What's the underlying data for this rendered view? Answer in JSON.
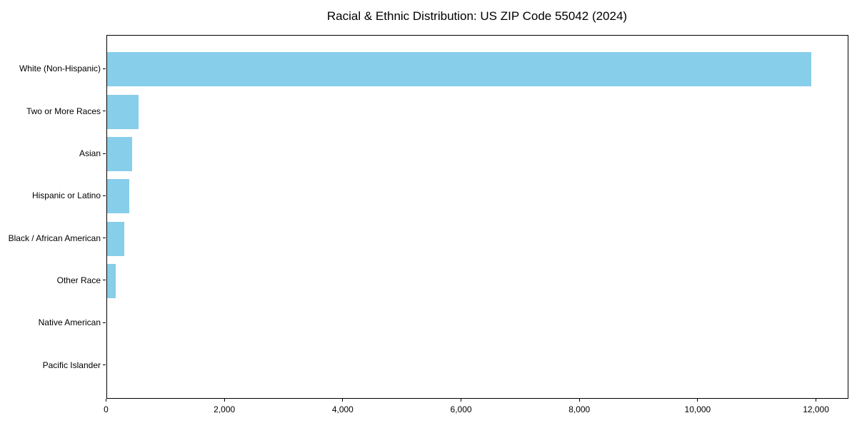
{
  "page": {
    "background_color": "#ffffff",
    "text_color": "#000000"
  },
  "chart_data": {
    "type": "bar",
    "orientation": "horizontal",
    "title": "Racial & Ethnic Distribution: US ZIP Code 55042 (2024)",
    "categories": [
      "White (Non-Hispanic)",
      "Two or More Races",
      "Asian",
      "Hispanic or Latino",
      "Black / African American",
      "Other Race",
      "Native American",
      "Pacific Islander"
    ],
    "values": [
      11910,
      540,
      430,
      375,
      300,
      150,
      0,
      0
    ],
    "xlabel": "",
    "ylabel": "",
    "xlim": [
      0,
      12540
    ],
    "xticks": [
      0,
      2000,
      4000,
      6000,
      8000,
      10000,
      12000
    ],
    "xtick_labels": [
      "0",
      "2,000",
      "4,000",
      "6,000",
      "8,000",
      "10,000",
      "12,000"
    ],
    "bar_color": "#87CEEB",
    "axis_color": "#000000",
    "grid": false,
    "legend": null,
    "bar_height_fraction": 0.81,
    "value_axis_top_category": "values read top to bottom, largest first"
  }
}
